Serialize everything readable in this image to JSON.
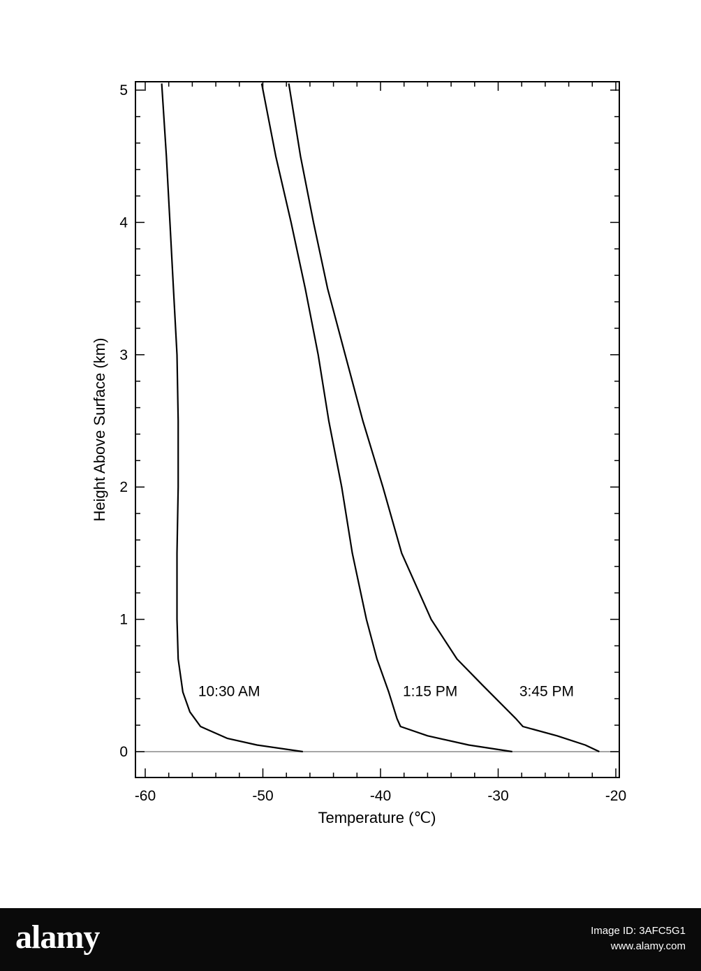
{
  "chart_data": {
    "type": "line",
    "title": "",
    "xlabel": "Temperature (℃)",
    "ylabel": "Height Above Surface (km)",
    "xlim": [
      -61,
      -20
    ],
    "ylim": [
      -0.2,
      5.05
    ],
    "xticks": [
      -60,
      -50,
      -40,
      -30,
      -20
    ],
    "yticks": [
      0,
      1,
      2,
      3,
      4,
      5
    ],
    "xtick_labels": [
      "-60",
      "-50",
      "-40",
      "-30",
      "-20"
    ],
    "ytick_labels": [
      "0",
      "1",
      "2",
      "3",
      "4",
      "5"
    ],
    "grid": false,
    "baseline_y": 0,
    "series": [
      {
        "name": "10:30 AM",
        "points": [
          [
            -46.6,
            0.0
          ],
          [
            -50.5,
            0.05
          ],
          [
            -53.0,
            0.1
          ],
          [
            -54.8,
            0.17
          ],
          [
            -55.3,
            0.19
          ],
          [
            -56.2,
            0.3
          ],
          [
            -56.8,
            0.45
          ],
          [
            -57.2,
            0.7
          ],
          [
            -57.3,
            1.0
          ],
          [
            -57.3,
            1.5
          ],
          [
            -57.2,
            2.0
          ],
          [
            -57.2,
            2.5
          ],
          [
            -57.3,
            3.0
          ],
          [
            -57.6,
            3.5
          ],
          [
            -57.9,
            4.0
          ],
          [
            -58.2,
            4.5
          ],
          [
            -58.6,
            5.05
          ]
        ]
      },
      {
        "name": "1:15 PM",
        "points": [
          [
            -28.8,
            0.0
          ],
          [
            -32.5,
            0.05
          ],
          [
            -36.0,
            0.12
          ],
          [
            -38.3,
            0.19
          ],
          [
            -38.6,
            0.25
          ],
          [
            -39.3,
            0.45
          ],
          [
            -40.3,
            0.7
          ],
          [
            -41.2,
            1.0
          ],
          [
            -42.4,
            1.5
          ],
          [
            -43.3,
            2.0
          ],
          [
            -44.4,
            2.5
          ],
          [
            -45.3,
            3.0
          ],
          [
            -46.4,
            3.5
          ],
          [
            -47.6,
            4.0
          ],
          [
            -48.9,
            4.5
          ],
          [
            -50.1,
            5.05
          ]
        ]
      },
      {
        "name": "3:45 PM",
        "points": [
          [
            -21.4,
            0.0
          ],
          [
            -22.6,
            0.05
          ],
          [
            -25.0,
            0.12
          ],
          [
            -27.9,
            0.19
          ],
          [
            -28.5,
            0.25
          ],
          [
            -31.3,
            0.5
          ],
          [
            -33.5,
            0.7
          ],
          [
            -35.7,
            1.0
          ],
          [
            -38.2,
            1.5
          ],
          [
            -39.8,
            2.0
          ],
          [
            -41.5,
            2.5
          ],
          [
            -43.0,
            3.0
          ],
          [
            -44.5,
            3.5
          ],
          [
            -45.7,
            4.0
          ],
          [
            -46.8,
            4.5
          ],
          [
            -47.8,
            5.05
          ]
        ]
      }
    ],
    "annotations": [
      {
        "text": "10:30 AM",
        "x": -55.5,
        "y": 0.42
      },
      {
        "text": "1:15 PM",
        "x": -38.1,
        "y": 0.42
      },
      {
        "text": "3:45 PM",
        "x": -28.2,
        "y": 0.42
      }
    ]
  },
  "footer": {
    "logo": "alamy",
    "image_id_text": "Image ID: 3AFC5G1",
    "site": "www.alamy.com"
  }
}
